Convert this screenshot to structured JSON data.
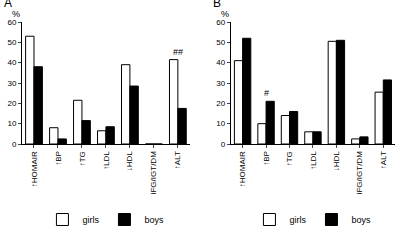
{
  "chart_data": [
    {
      "type": "bar",
      "title": "A",
      "ylabel": "%",
      "categories": [
        "↑HOMAIR",
        "↑BP",
        "↑TG",
        "↑LDL",
        "↓HDL",
        "IFG/IGT/DM",
        "↑ALT"
      ],
      "series": [
        {
          "name": "girls",
          "color": "#ffffff",
          "values": [
            53,
            8,
            21.5,
            6.5,
            39,
            0,
            41.5
          ]
        },
        {
          "name": "boys",
          "color": "#000000",
          "values": [
            38,
            2.5,
            11.5,
            8.5,
            28.5,
            0,
            17.5
          ]
        }
      ],
      "ylim": [
        0,
        60
      ],
      "yticks": [
        0,
        10,
        20,
        30,
        40,
        50,
        60
      ],
      "grid": false,
      "legend": "bottom",
      "annotations": [
        {
          "text": "##",
          "category": "↑ALT"
        }
      ]
    },
    {
      "type": "bar",
      "title": "B",
      "ylabel": "%",
      "categories": [
        "↑HOMAIR",
        "↑BP",
        "↑TG",
        "↑LDL",
        "↓HDL",
        "IFG/IGT/DM",
        "↑ALT"
      ],
      "series": [
        {
          "name": "girls",
          "color": "#ffffff",
          "values": [
            41,
            10,
            14,
            6,
            50.5,
            2.5,
            25.5
          ]
        },
        {
          "name": "boys",
          "color": "#000000",
          "values": [
            52,
            21,
            16,
            6,
            51,
            3.5,
            31.5
          ]
        }
      ],
      "ylim": [
        0,
        60
      ],
      "yticks": [
        0,
        10,
        20,
        30,
        40,
        50,
        60
      ],
      "grid": false,
      "legend": "bottom",
      "annotations": [
        {
          "text": "#",
          "category": "↑BP"
        }
      ]
    }
  ]
}
